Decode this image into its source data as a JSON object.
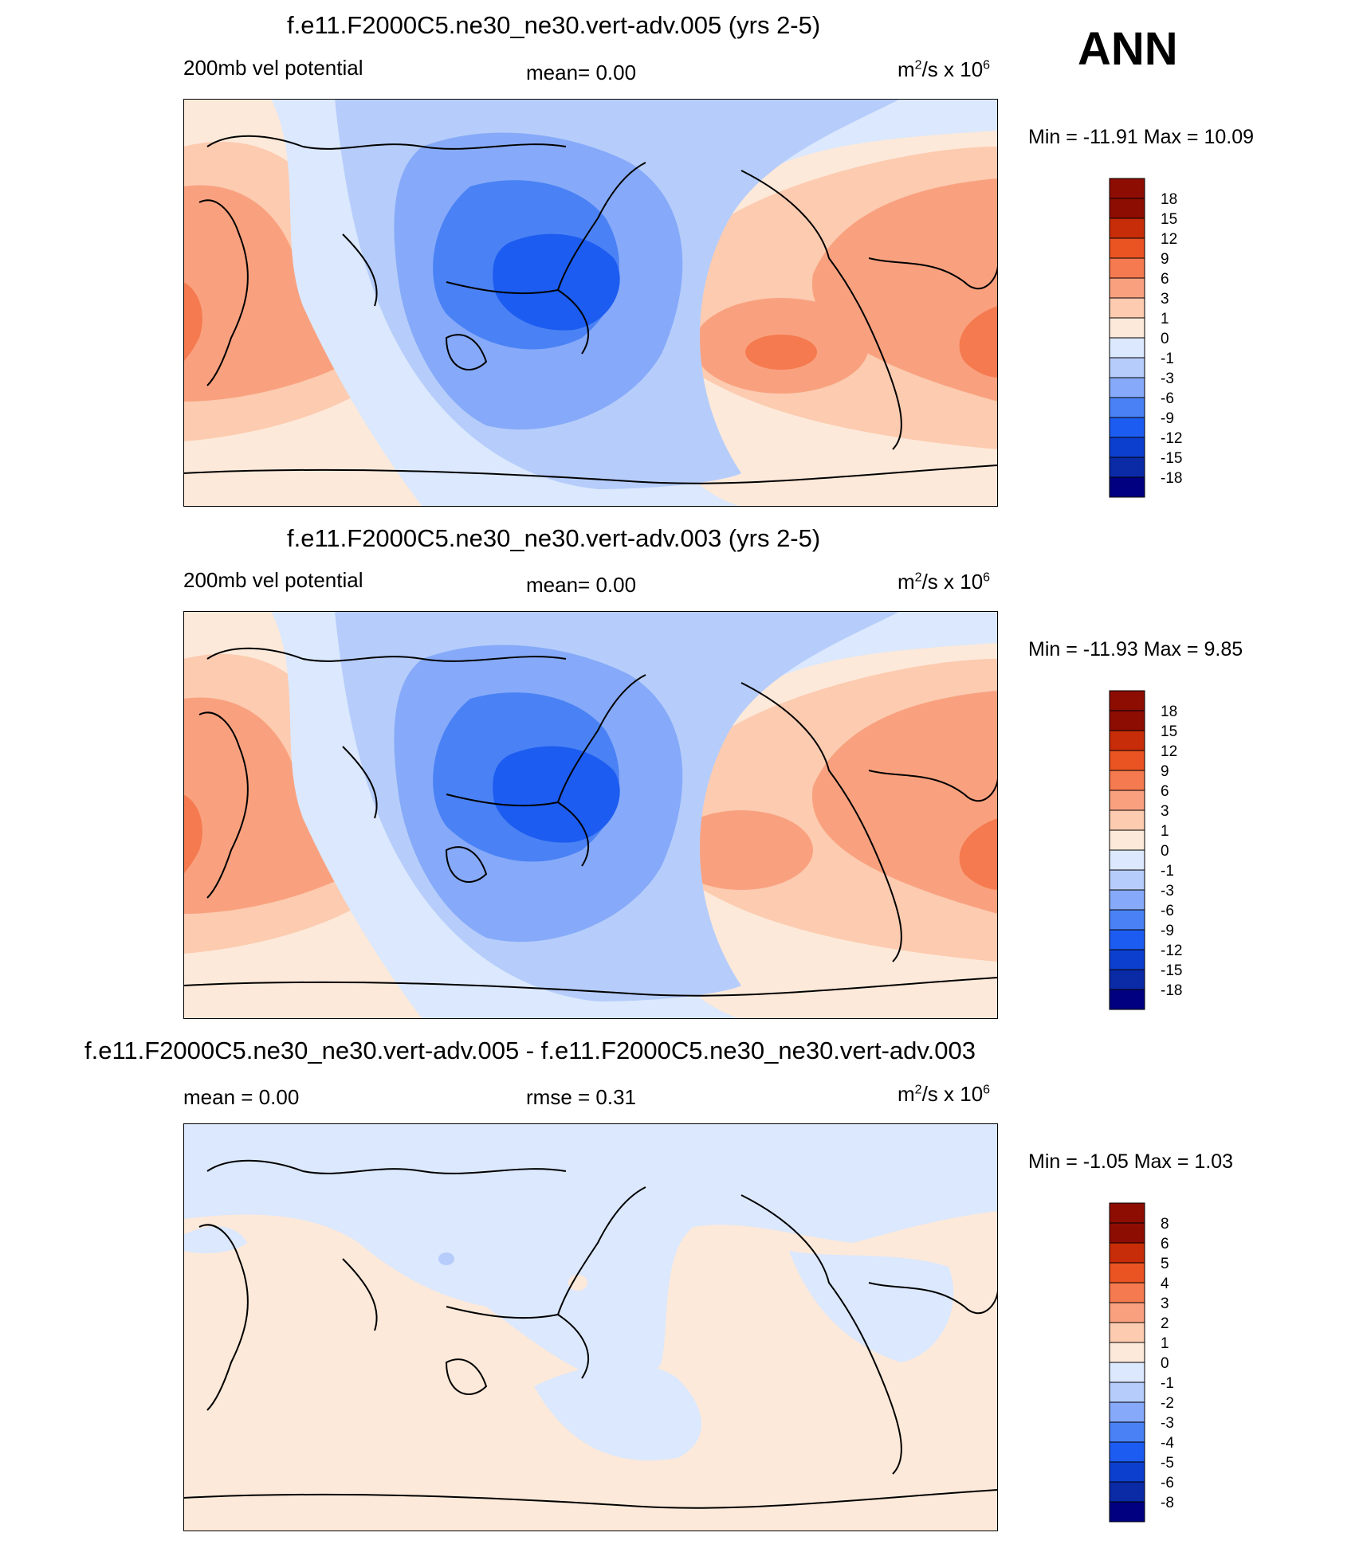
{
  "season": "ANN",
  "units_base": "m",
  "units_sup1": "2",
  "units_mid": "/s x 10",
  "units_sup2": "6",
  "colors": {
    "abs_scale": [
      "#000080",
      "#0a2aa6",
      "#0d3fcf",
      "#1c5cf0",
      "#4a82f5",
      "#86aaf9",
      "#b6cdfb",
      "#dbe8fd",
      "#fde9d9",
      "#fccbb0",
      "#f9a17f",
      "#f57a4f",
      "#ea5322",
      "#c62d08",
      "#8e0d02"
    ],
    "diff_scale": [
      "#000080",
      "#0a2aa6",
      "#0d3fcf",
      "#1c5cf0",
      "#4a82f5",
      "#86aaf9",
      "#b6cdfb",
      "#dbe8fd",
      "#fde9d9",
      "#fccbb0",
      "#f9a17f",
      "#f57a4f",
      "#ea5322",
      "#c62d08",
      "#8e0d02"
    ]
  },
  "chart_data": [
    {
      "type": "heatmap",
      "title": "f.e11.F2000C5.ne30_ne30.vert-adv.005 (yrs 2-5)",
      "left_label": "200mb vel potential",
      "center_label": "mean=   0.00",
      "min_max": "Min = -11.91 Max =  10.09",
      "colorbar_levels": [
        "18",
        "15",
        "12",
        "9",
        "6",
        "3",
        "1",
        "0",
        "-1",
        "-3",
        "-6",
        "-9",
        "-12",
        "-15",
        "-18"
      ]
    },
    {
      "type": "heatmap",
      "title": "f.e11.F2000C5.ne30_ne30.vert-adv.003 (yrs 2-5)",
      "left_label": "200mb vel potential",
      "center_label": "mean=   0.00",
      "min_max": "Min = -11.93 Max =   9.85",
      "colorbar_levels": [
        "18",
        "15",
        "12",
        "9",
        "6",
        "3",
        "1",
        "0",
        "-1",
        "-3",
        "-6",
        "-9",
        "-12",
        "-15",
        "-18"
      ]
    },
    {
      "type": "heatmap",
      "title": "f.e11.F2000C5.ne30_ne30.vert-adv.005 - f.e11.F2000C5.ne30_ne30.vert-adv.003",
      "left_label": "mean =   0.00",
      "center_label": "rmse =   0.31",
      "min_max": "Min =  -1.05 Max =   1.03",
      "colorbar_levels": [
        "8",
        "6",
        "5",
        "4",
        "3",
        "2",
        "1",
        "0",
        "-1",
        "-2",
        "-3",
        "-4",
        "-5",
        "-6",
        "-8"
      ]
    }
  ]
}
